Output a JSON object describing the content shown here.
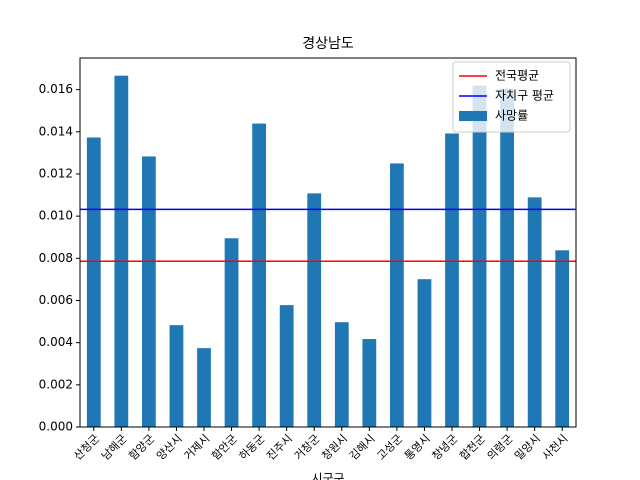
{
  "chart_data": {
    "type": "bar",
    "title": "경상남도",
    "xlabel": "시군구",
    "categories": [
      "산청군",
      "남해군",
      "함양군",
      "양산시",
      "거제시",
      "함안군",
      "하동군",
      "진주시",
      "거창군",
      "창원시",
      "김해시",
      "고성군",
      "통영시",
      "창녕군",
      "합천군",
      "의령군",
      "밀양시",
      "사천시"
    ],
    "series": [
      {
        "name": "사망률",
        "color": "#1f77b4",
        "values": [
          0.01373,
          0.01666,
          0.01283,
          0.00483,
          0.00374,
          0.00895,
          0.01439,
          0.00578,
          0.01108,
          0.00497,
          0.00417,
          0.0125,
          0.00701,
          0.01392,
          0.01619,
          0.01605,
          0.01089,
          0.00838
        ]
      }
    ],
    "hlines": [
      {
        "name": "전국평균",
        "color": "#ff0000",
        "value": 0.00786
      },
      {
        "name": "자치구 평균",
        "color": "#0000ff",
        "value": 0.01032
      }
    ],
    "ylim": [
      0,
      0.0175
    ],
    "yticks": [
      {
        "value": 0,
        "label": "0.000"
      },
      {
        "value": 0.002,
        "label": "0.002"
      },
      {
        "value": 0.004,
        "label": "0.004"
      },
      {
        "value": 0.006,
        "label": "0.006"
      },
      {
        "value": 0.008,
        "label": "0.008"
      },
      {
        "value": 0.01,
        "label": "0.010"
      },
      {
        "value": 0.012,
        "label": "0.012"
      },
      {
        "value": 0.014,
        "label": "0.014"
      },
      {
        "value": 0.016,
        "label": "0.016"
      }
    ],
    "legend": "upper right"
  }
}
